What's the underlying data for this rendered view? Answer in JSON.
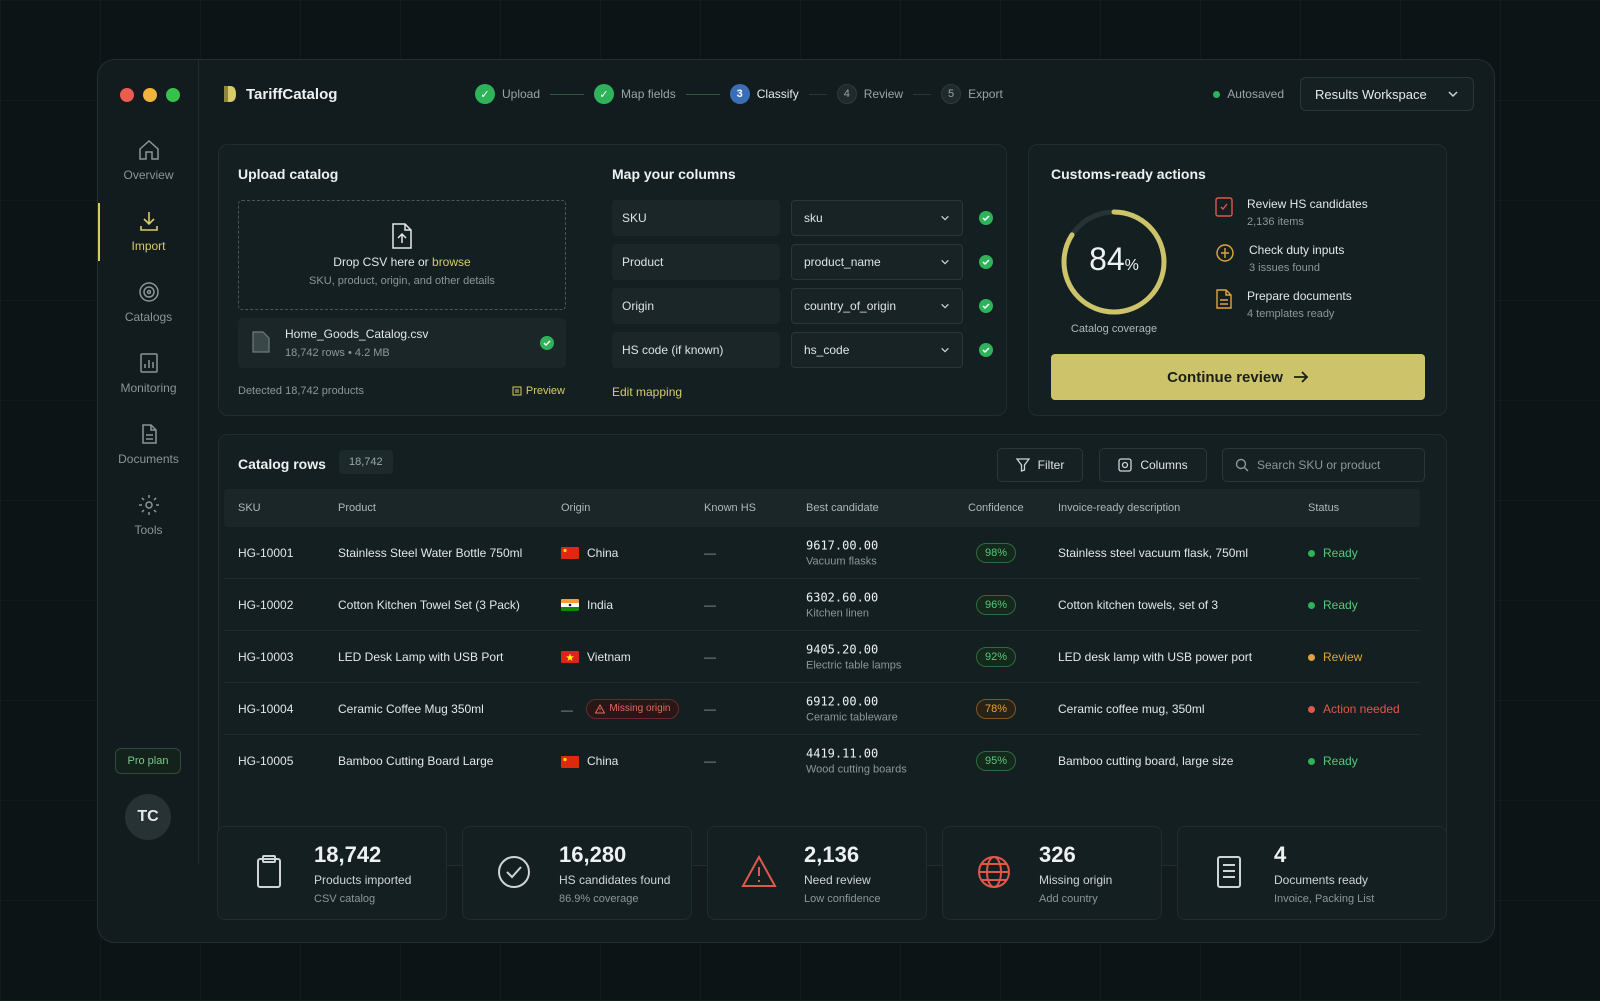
{
  "app": {
    "name": "TariffCatalog"
  },
  "steps": [
    {
      "label": "Upload",
      "state": "done"
    },
    {
      "label": "Map fields",
      "state": "done"
    },
    {
      "number": "3",
      "label": "Classify",
      "state": "current"
    },
    {
      "number": "4",
      "label": "Review",
      "state": "todo"
    },
    {
      "number": "5",
      "label": "Export",
      "state": "todo"
    }
  ],
  "header": {
    "autosave": "Autosaved",
    "workspace": "Results Workspace"
  },
  "sidebar": {
    "items": [
      {
        "label": "Overview",
        "icon": "home-icon"
      },
      {
        "label": "Import",
        "icon": "download-icon",
        "active": true
      },
      {
        "label": "Catalogs",
        "icon": "catalog-icon"
      },
      {
        "label": "Monitoring",
        "icon": "monitoring-icon"
      },
      {
        "label": "Documents",
        "icon": "document-icon"
      },
      {
        "label": "Tools",
        "icon": "gear-icon"
      }
    ],
    "plan": "Pro plan",
    "avatar": "TC"
  },
  "upload": {
    "title": "Upload catalog",
    "drop_text": "Drop CSV here or ",
    "browse": "browse",
    "drop_sub": "SKU, product, origin, and other details",
    "file_name": "Home_Goods_Catalog.csv",
    "file_meta": "18,742 rows  •  4.2 MB",
    "detected": "Detected 18,742 products",
    "preview": "Preview"
  },
  "mapping": {
    "title": "Map your columns",
    "rows": [
      {
        "label": "SKU",
        "value": "sku"
      },
      {
        "label": "Product",
        "value": "product_name"
      },
      {
        "label": "Origin",
        "value": "country_of_origin"
      },
      {
        "label": "HS code (if known)",
        "value": "hs_code"
      }
    ],
    "edit": "Edit mapping"
  },
  "actions": {
    "title": "Customs-ready actions",
    "coverage_value": "84",
    "coverage_unit": "%",
    "coverage_fraction": 0.84,
    "coverage_label": "Catalog coverage",
    "items": [
      {
        "title": "Review HS candidates",
        "sub": "2,136 items",
        "icon": "review-icon",
        "color": "#e0584a"
      },
      {
        "title": "Check duty inputs",
        "sub": "3 issues found",
        "icon": "duty-icon",
        "color": "#e0a53a"
      },
      {
        "title": "Prepare documents",
        "sub": "4 templates ready",
        "icon": "doc-icon",
        "color": "#e0a53a"
      }
    ],
    "continue": "Continue review"
  },
  "catalog": {
    "title": "Catalog rows",
    "count": "18,742",
    "filter": "Filter",
    "columns": "Columns",
    "search_placeholder": "Search SKU or product",
    "headers": [
      "SKU",
      "Product",
      "Origin",
      "Known HS",
      "Best candidate",
      "Confidence",
      "Invoice-ready description",
      "Status"
    ],
    "rows": [
      {
        "sku": "HG-10001",
        "product": "Stainless Steel Water Bottle 750ml",
        "origin": "China",
        "flag": "cn",
        "known": "—",
        "hs": "9617.00.00",
        "hs_desc": "Vacuum flasks",
        "conf": "98%",
        "conf_level": "high",
        "desc": "Stainless steel vacuum flask, 750ml",
        "status": "Ready",
        "status_color": "#2fb35a"
      },
      {
        "sku": "HG-10002",
        "product": "Cotton Kitchen Towel Set (3 Pack)",
        "origin": "India",
        "flag": "in",
        "known": "—",
        "hs": "6302.60.00",
        "hs_desc": "Kitchen linen",
        "conf": "96%",
        "conf_level": "high",
        "desc": "Cotton kitchen towels, set of 3",
        "status": "Ready",
        "status_color": "#2fb35a"
      },
      {
        "sku": "HG-10003",
        "product": "LED Desk Lamp with USB Port",
        "origin": "Vietnam",
        "flag": "vn",
        "known": "—",
        "hs": "9405.20.00",
        "hs_desc": "Electric table lamps",
        "conf": "92%",
        "conf_level": "high",
        "desc": "LED desk lamp with USB power port",
        "status": "Review",
        "status_color": "#e0a53a"
      },
      {
        "sku": "HG-10004",
        "product": "Ceramic Coffee Mug 350ml",
        "origin": "—",
        "missing": "Missing origin",
        "known": "—",
        "hs": "6912.00.00",
        "hs_desc": "Ceramic tableware",
        "conf": "78%",
        "conf_level": "mid",
        "desc": "Ceramic coffee mug, 350ml",
        "status": "Action needed",
        "status_color": "#e0584a"
      },
      {
        "sku": "HG-10005",
        "product": "Bamboo Cutting Board Large",
        "origin": "China",
        "flag": "cn",
        "known": "—",
        "hs": "4419.11.00",
        "hs_desc": "Wood cutting boards",
        "conf": "95%",
        "conf_level": "high",
        "desc": "Bamboo cutting board, large size",
        "status": "Ready",
        "status_color": "#2fb35a"
      }
    ]
  },
  "stats": [
    {
      "value": "18,742",
      "label": "Products imported",
      "sub": "CSV catalog",
      "icon": "clipboard-icon",
      "color": "#cfd5d5"
    },
    {
      "value": "16,280",
      "label": "HS candidates found",
      "sub": "86.9% coverage",
      "icon": "check-circle-icon",
      "color": "#cfd5d5"
    },
    {
      "value": "2,136",
      "label": "Need review",
      "sub": "Low confidence",
      "icon": "warning-icon",
      "color": "#e0584a"
    },
    {
      "value": "326",
      "label": "Missing origin",
      "sub": "Add country",
      "icon": "globe-icon",
      "color": "#e0584a"
    },
    {
      "value": "4",
      "label": "Documents ready",
      "sub": "Invoice, Packing List",
      "icon": "file-lines-icon",
      "color": "#cfd5d5"
    }
  ]
}
